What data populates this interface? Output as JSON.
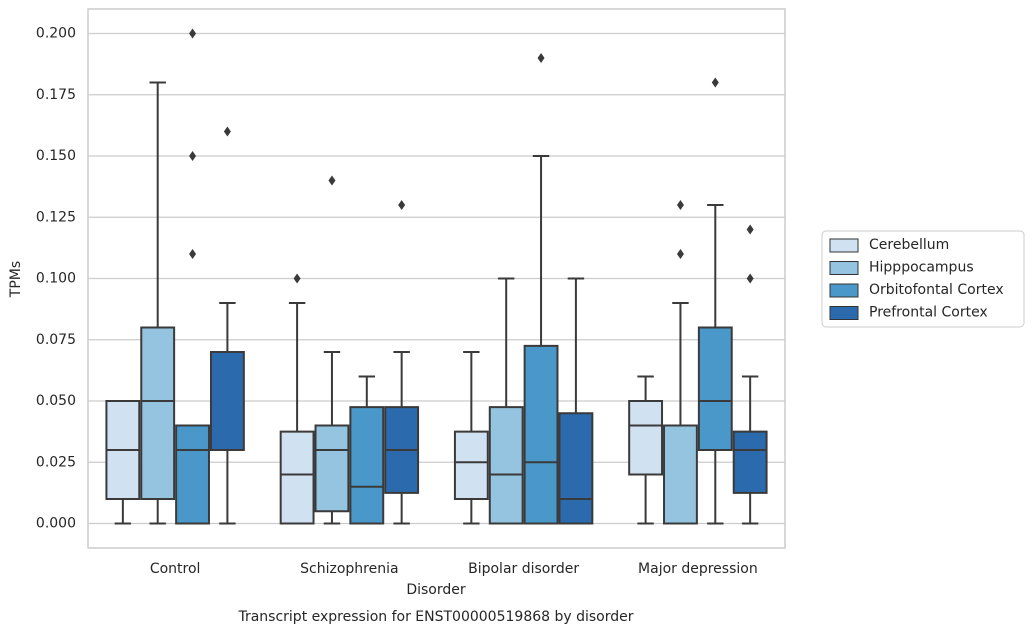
{
  "chart_data": {
    "type": "box",
    "title": "Transcript expression for ENST00000519868 by disorder",
    "xlabel": "Disorder",
    "ylabel": "TPMs",
    "categories": [
      "Control",
      "Schizophrenia",
      "Bipolar disorder",
      "Major depression"
    ],
    "ylim": [
      -0.01,
      0.21
    ],
    "yticks": [
      {
        "value": 0,
        "label": "0.000"
      },
      {
        "value": 0.025,
        "label": "0.025"
      },
      {
        "value": 0.05,
        "label": "0.050"
      },
      {
        "value": 0.075,
        "label": "0.075"
      },
      {
        "value": 0.1,
        "label": "0.100"
      },
      {
        "value": 0.125,
        "label": "0.125"
      },
      {
        "value": 0.15,
        "label": "0.150"
      },
      {
        "value": 0.175,
        "label": "0.175"
      },
      {
        "value": 0.2,
        "label": "0.200"
      }
    ],
    "grid": true,
    "legend": "right",
    "series": [
      {
        "name": "Cerebellum",
        "color": "#d0e1f2",
        "boxes": [
          {
            "low": 0,
            "q1": 0.01,
            "median": 0.03,
            "q3": 0.05,
            "high": 0.05,
            "outliers": []
          },
          {
            "low": 0,
            "q1": 0,
            "median": 0.02,
            "q3": 0.0375,
            "high": 0.09,
            "outliers": [
              0.1
            ]
          },
          {
            "low": 0,
            "q1": 0.01,
            "median": 0.025,
            "q3": 0.0375,
            "high": 0.07,
            "outliers": []
          },
          {
            "low": 0,
            "q1": 0.02,
            "median": 0.04,
            "q3": 0.05,
            "high": 0.06,
            "outliers": []
          }
        ]
      },
      {
        "name": "Hipppocampus",
        "color": "#94c4df",
        "boxes": [
          {
            "low": 0,
            "q1": 0.01,
            "median": 0.05,
            "q3": 0.08,
            "high": 0.18,
            "outliers": []
          },
          {
            "low": 0,
            "q1": 0.005,
            "median": 0.03,
            "q3": 0.04,
            "high": 0.07,
            "outliers": [
              0.14
            ]
          },
          {
            "low": 0,
            "q1": 0,
            "median": 0.02,
            "q3": 0.0475,
            "high": 0.1,
            "outliers": []
          },
          {
            "low": 0,
            "q1": 0,
            "median": 0.04,
            "q3": 0.04,
            "high": 0.09,
            "outliers": [
              0.13,
              0.11
            ]
          }
        ]
      },
      {
        "name": "Orbitofontal Cortex",
        "color": "#4a98c9",
        "boxes": [
          {
            "low": 0,
            "q1": 0,
            "median": 0.03,
            "q3": 0.04,
            "high": 0.04,
            "outliers": [
              0.2,
              0.15,
              0.11
            ]
          },
          {
            "low": 0,
            "q1": 0,
            "median": 0.015,
            "q3": 0.0475,
            "high": 0.06,
            "outliers": []
          },
          {
            "low": 0,
            "q1": 0,
            "median": 0.025,
            "q3": 0.0725,
            "high": 0.15,
            "outliers": [
              0.19
            ]
          },
          {
            "low": 0,
            "q1": 0.03,
            "median": 0.05,
            "q3": 0.08,
            "high": 0.13,
            "outliers": [
              0.18
            ]
          }
        ]
      },
      {
        "name": "Prefrontal Cortex",
        "color": "#2b6aad",
        "boxes": [
          {
            "low": 0,
            "q1": 0.03,
            "median": 0.03,
            "q3": 0.07,
            "high": 0.09,
            "outliers": [
              0.16
            ]
          },
          {
            "low": 0,
            "q1": 0.0125,
            "median": 0.03,
            "q3": 0.0475,
            "high": 0.07,
            "outliers": [
              0.13
            ]
          },
          {
            "low": 0,
            "q1": 0,
            "median": 0.01,
            "q3": 0.045,
            "high": 0.1,
            "outliers": []
          },
          {
            "low": 0,
            "q1": 0.0125,
            "median": 0.03,
            "q3": 0.0375,
            "high": 0.06,
            "outliers": [
              0.12,
              0.1
            ]
          }
        ]
      }
    ]
  }
}
